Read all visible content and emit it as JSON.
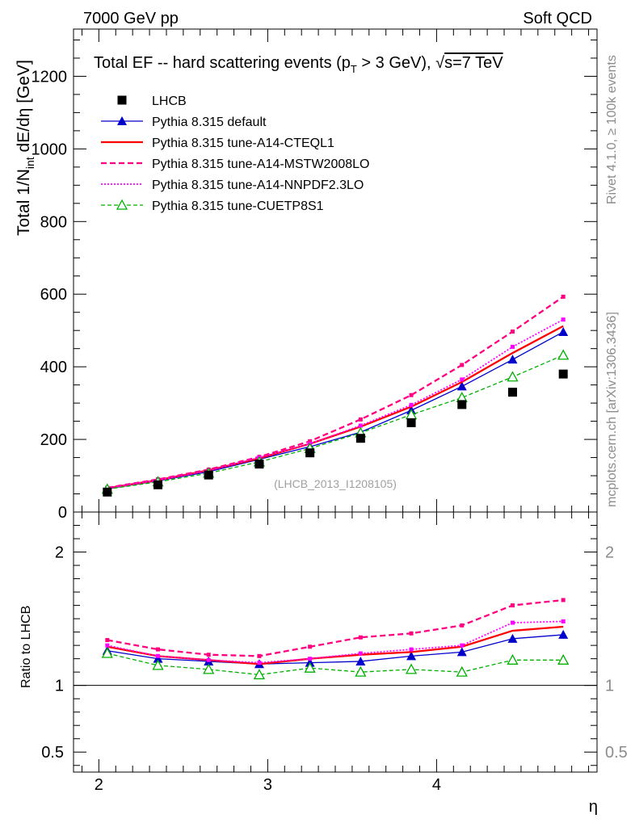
{
  "header": {
    "left": "7000 GeV pp",
    "right": "Soft QCD"
  },
  "side_labels": {
    "rivet": "Rivet 4.1.0, ≥ 100k events",
    "mcplots": "mcplots.cern.ch [arXiv:1306.3436]"
  },
  "chart_data": {
    "type": "line",
    "title_parts": {
      "main": "Total EF -- hard scattering events (p",
      "sub": "T",
      "after": " > 3 GeV), ",
      "sqrt": "√",
      "s_eq": "s=7 TeV"
    },
    "ylabel_parts": {
      "a": "Total 1/N",
      "sub": "int",
      "b": "  dE/dη [GeV]"
    },
    "xlabel": "η",
    "ratio_ylabel": "Ratio to LHCB",
    "watermark": "(LHCB_2013_I1208105)",
    "xlim": [
      1.85,
      4.95
    ],
    "ylim": [
      0,
      1330
    ],
    "ratio_ylim": [
      0.35,
      2.3
    ],
    "xticks": [
      2,
      3,
      4
    ],
    "xtick_labels": [
      "2",
      "3",
      "4"
    ],
    "yticks": [
      0,
      200,
      400,
      600,
      800,
      1000,
      1200
    ],
    "ytick_labels": [
      "0",
      "200",
      "400",
      "600",
      "800",
      "1000",
      "1200"
    ],
    "ratio_yticks": [
      0.5,
      1,
      2
    ],
    "ratio_ytick_labels": [
      "0.5",
      "1",
      "2"
    ],
    "x": [
      2.05,
      2.35,
      2.65,
      2.95,
      3.25,
      3.55,
      3.85,
      4.15,
      4.45,
      4.75
    ],
    "data": {
      "name": "LHCB",
      "color": "#000000",
      "values": [
        55,
        75,
        102,
        132,
        163,
        203,
        246,
        296,
        330,
        380
      ]
    },
    "series": [
      {
        "name": "Pythia 8.315 default",
        "color": "#0000cc",
        "dash": "",
        "width": 1.3,
        "marker": "triangle-filled",
        "values": [
          64,
          86,
          111,
          145,
          180,
          220,
          280,
          346,
          420,
          496
        ],
        "ratio": [
          1.26,
          1.2,
          1.18,
          1.16,
          1.17,
          1.18,
          1.22,
          1.25,
          1.35,
          1.38
        ]
      },
      {
        "name": "Pythia 8.315 tune-A14-CTEQL1",
        "color": "#ff0000",
        "dash": "",
        "width": 2.3,
        "marker": "none",
        "values": [
          66,
          88,
          115,
          148,
          188,
          235,
          290,
          358,
          438,
          512
        ],
        "ratio": [
          1.29,
          1.22,
          1.19,
          1.16,
          1.2,
          1.23,
          1.25,
          1.29,
          1.41,
          1.44
        ]
      },
      {
        "name": "Pythia 8.315 tune-A14-MSTW2008LO",
        "color": "#ff0080",
        "dash": "7,4",
        "width": 2.3,
        "marker": "square-small",
        "values": [
          67,
          90,
          117,
          152,
          195,
          255,
          322,
          405,
          497,
          593
        ],
        "ratio": [
          1.34,
          1.27,
          1.23,
          1.22,
          1.29,
          1.36,
          1.39,
          1.45,
          1.6,
          1.64
        ]
      },
      {
        "name": "Pythia 8.315 tune-A14-NNPDF2.3LO",
        "color": "#ff00ff",
        "dash": "2,2",
        "width": 1.8,
        "marker": "square-small",
        "values": [
          66,
          88,
          114,
          150,
          188,
          238,
          295,
          365,
          455,
          530
        ],
        "ratio": [
          1.3,
          1.22,
          1.19,
          1.17,
          1.2,
          1.24,
          1.27,
          1.3,
          1.47,
          1.48
        ]
      },
      {
        "name": "Pythia 8.315 tune-CUETP8S1",
        "color": "#00b000",
        "dash": "5,3",
        "width": 1.3,
        "marker": "triangle-open",
        "values": [
          63,
          83,
          107,
          138,
          175,
          218,
          268,
          315,
          372,
          432
        ],
        "ratio": [
          1.24,
          1.15,
          1.12,
          1.08,
          1.13,
          1.1,
          1.12,
          1.1,
          1.19,
          1.19
        ]
      }
    ]
  }
}
